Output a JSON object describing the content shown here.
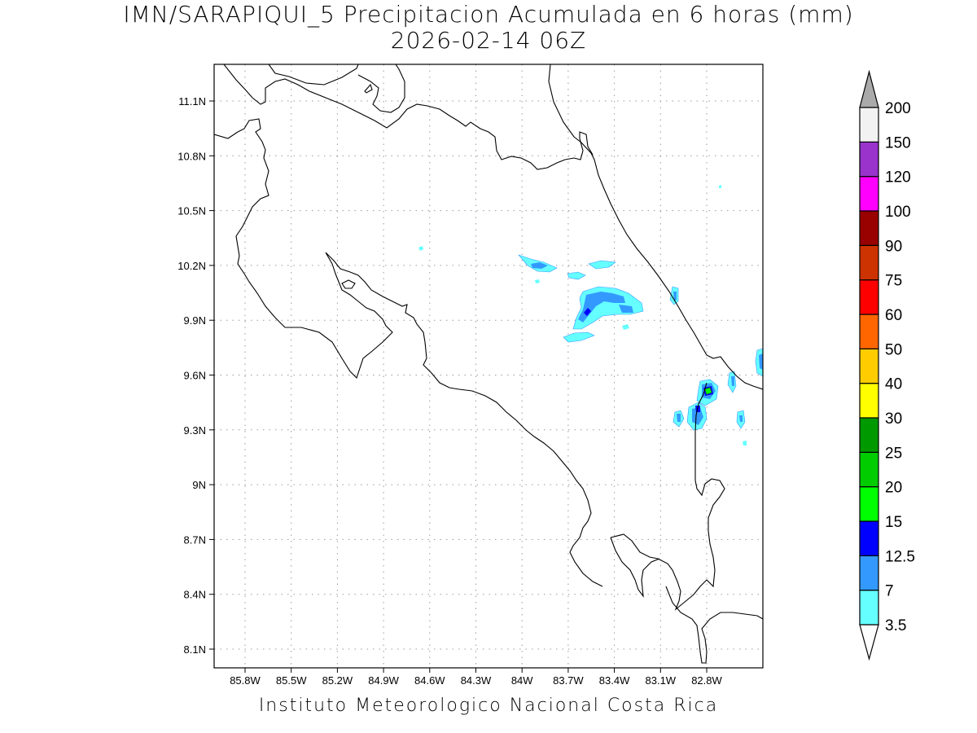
{
  "title": {
    "line1": "IMN/SARAPIQUI_5 Precipitacion Acumulada en 6 horas (mm)",
    "line2": "2026-02-14 06Z"
  },
  "footer": "Instituto Meteorologico Nacional Costa Rica",
  "map": {
    "lon_ticks": [
      "85.8W",
      "85.5W",
      "85.2W",
      "84.9W",
      "84.6W",
      "84.3W",
      "84W",
      "83.7W",
      "83.4W",
      "83.1W",
      "82.8W"
    ],
    "lat_ticks": [
      "11.1N",
      "10.8N",
      "10.5N",
      "10.2N",
      "9.9N",
      "9.6N",
      "9.3N",
      "9N",
      "8.7N",
      "8.4N",
      "8.1N"
    ],
    "grid": "dotted"
  },
  "colorbar": {
    "labels": [
      "3.5",
      "7",
      "12.5",
      "15",
      "20",
      "25",
      "30",
      "40",
      "50",
      "60",
      "75",
      "90",
      "100",
      "120",
      "150",
      "200"
    ],
    "colors": [
      "#66ffff",
      "#3399ff",
      "#0000ff",
      "#00ff00",
      "#00cc00",
      "#009900",
      "#ffff00",
      "#ffcc00",
      "#ff6600",
      "#ff0000",
      "#cc3300",
      "#990000",
      "#ff00ff",
      "#9933cc",
      "#f2f2f2"
    ],
    "under_color": "#ffffff",
    "over_color": "#aaaaaa"
  }
}
